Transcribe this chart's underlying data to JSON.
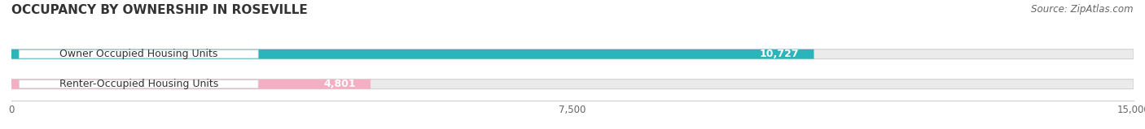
{
  "title": "OCCUPANCY BY OWNERSHIP IN ROSEVILLE",
  "source": "Source: ZipAtlas.com",
  "categories": [
    "Owner Occupied Housing Units",
    "Renter-Occupied Housing Units"
  ],
  "values": [
    10727,
    4801
  ],
  "bar_colors": [
    "#2ab5bb",
    "#f5afc4"
  ],
  "value_labels": [
    "10,727",
    "4,801"
  ],
  "xlim": [
    0,
    15000
  ],
  "xtick_labels": [
    "0",
    "7,500",
    "15,000"
  ],
  "xtick_vals": [
    0,
    7500,
    15000
  ],
  "bar_height": 0.32,
  "title_fontsize": 11,
  "label_fontsize": 9,
  "value_fontsize": 9,
  "source_fontsize": 8.5,
  "background_color": "#ffffff",
  "bar_bg_color": "#ebebeb"
}
